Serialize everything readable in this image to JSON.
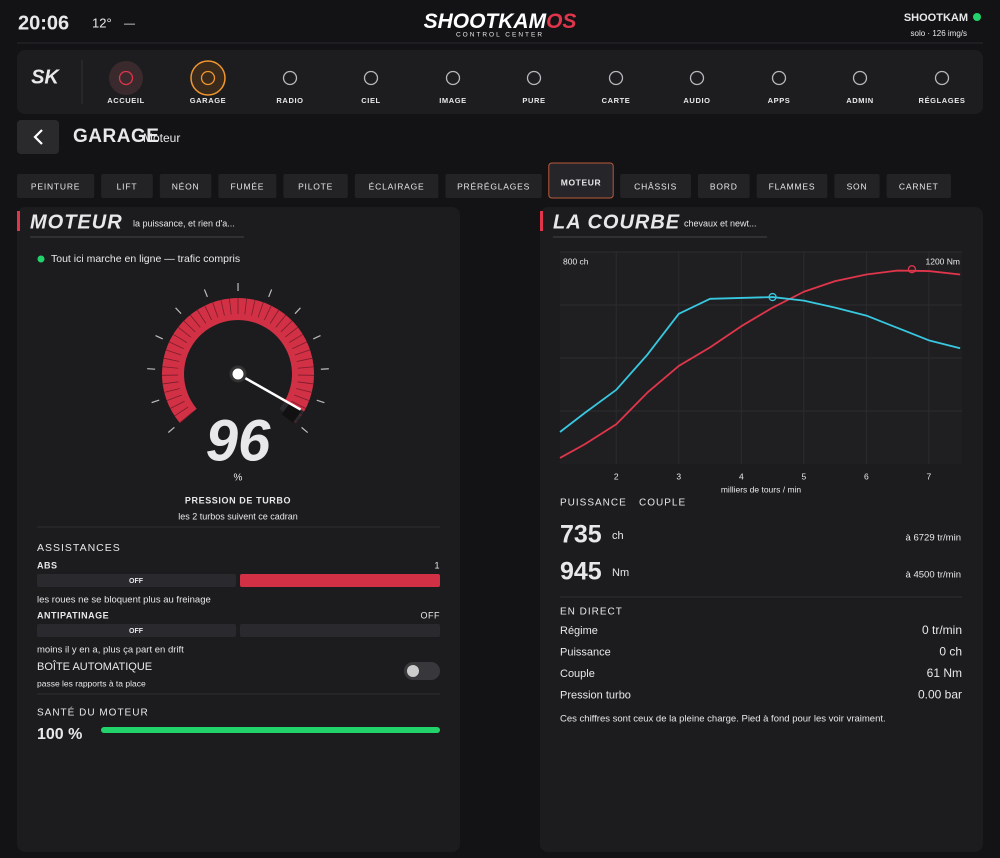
{
  "header": {
    "time": "20:06",
    "temperature": "12°",
    "separator": "—",
    "logo_main": "SHOOTKAM",
    "logo_accent": "OS",
    "logo_sub": "CONTROL CENTER",
    "user": "SHOOTKAM",
    "user_status": "solo · 126 img/s"
  },
  "nav": {
    "logo": "SK",
    "items": [
      {
        "label": "ACCUEIL",
        "style": "home"
      },
      {
        "label": "GARAGE",
        "style": "active"
      },
      {
        "label": "RADIO"
      },
      {
        "label": "CIEL"
      },
      {
        "label": "IMAGE"
      },
      {
        "label": "PURE"
      },
      {
        "label": "CARTE"
      },
      {
        "label": "AUDIO"
      },
      {
        "label": "APPS"
      },
      {
        "label": "ADMIN"
      },
      {
        "label": "RÉGLAGES"
      }
    ]
  },
  "page": {
    "title": "GARAGE",
    "subtitle": "Moteur"
  },
  "tabs": {
    "items": [
      "PEINTURE",
      "LIFT",
      "NÉON",
      "FUMÉE",
      "PILOTE",
      "ÉCLAIRAGE",
      "PRÉRÉGLAGES",
      "MOTEUR",
      "CHÂSSIS",
      "BORD",
      "FLAMMES",
      "SON",
      "CARNET"
    ],
    "active": 7
  },
  "engine_panel": {
    "title": "MOTEUR",
    "subtitle": "la puissance, et rien d'a...",
    "status": "Tout ici marche en ligne — trafic compris",
    "gauge": {
      "value": 96,
      "unit": "%",
      "lim": [
        0,
        100
      ],
      "label": "PRESSION DE TURBO",
      "sublabel": "les 2 turbos suivent ce cadran"
    },
    "assist": {
      "title": "ASSISTANCES",
      "items": [
        {
          "name": "ABS",
          "state": "1",
          "off": "OFF",
          "enabled": true,
          "desc": "les roues ne se bloquent plus au freinage"
        },
        {
          "name": "ANTIPATINAGE",
          "state": "OFF",
          "off": "OFF",
          "enabled": false,
          "desc": "moins il y en a, plus ça part en drift"
        }
      ],
      "gearbox": {
        "name": "BOÎTE AUTOMATIQUE",
        "desc": "passe les rapports à ta place",
        "enabled": false
      }
    },
    "health": {
      "title": "SANTÉ DU MOTEUR",
      "value": 100,
      "value_label": "100 %",
      "lim": [
        0,
        100
      ]
    }
  },
  "curve_panel": {
    "title": "LA COURBE",
    "subtitle": "chevaux et newt...",
    "chart_data": {
      "type": "line",
      "xlabel": "milliers de tours / min",
      "x": [
        1.1,
        1.5,
        2,
        2.5,
        3,
        3.5,
        4,
        4.5,
        5,
        5.5,
        6,
        6.5,
        7,
        7.5
      ],
      "series": [
        {
          "name": "PUISSANCE",
          "unit": "ch",
          "color": "#e0354a",
          "values": [
            23,
            75,
            150,
            270,
            370,
            440,
            520,
            590,
            650,
            690,
            715,
            730,
            728,
            715
          ]
        },
        {
          "name": "COUPLE",
          "unit": "Nm",
          "color": "#38c8e0",
          "axis": "y2",
          "values": [
            181,
            290,
            420,
            620,
            850,
            935,
            940,
            945,
            925,
            885,
            840,
            770,
            700,
            655
          ]
        }
      ],
      "xlim": [
        1.1,
        7.53
      ],
      "xticks": [
        2,
        3,
        4,
        5,
        6,
        7
      ],
      "ylim": [
        0,
        800
      ],
      "yticks": [
        {
          "value": 800,
          "label": "800 ch"
        }
      ],
      "y2lim": [
        0,
        1200
      ],
      "y2ticks": [
        {
          "value": 1200,
          "label": "1200 Nm"
        }
      ],
      "grid": true,
      "markers": [
        {
          "series": 0,
          "x": 6.729,
          "y": 735,
          "at_label": "à 6729 tr/min"
        },
        {
          "series": 1,
          "x": 4.5,
          "y": 945,
          "at_label": "à 4500 tr/min"
        }
      ]
    },
    "live": {
      "title": "EN DIRECT",
      "rows": [
        {
          "label": "Régime",
          "value": "0 tr/min",
          "color": "#ffffff"
        },
        {
          "label": "Puissance",
          "value": "0 ch",
          "color": "#e0354a"
        },
        {
          "label": "Couple",
          "value": "61 Nm",
          "color": "#38c8e0"
        },
        {
          "label": "Pression turbo",
          "value": "0.00 bar",
          "color": "#f0962f"
        }
      ]
    },
    "note": "Ces chiffres sont ceux de la pleine charge. Pied à fond pour les voir vraiment."
  }
}
